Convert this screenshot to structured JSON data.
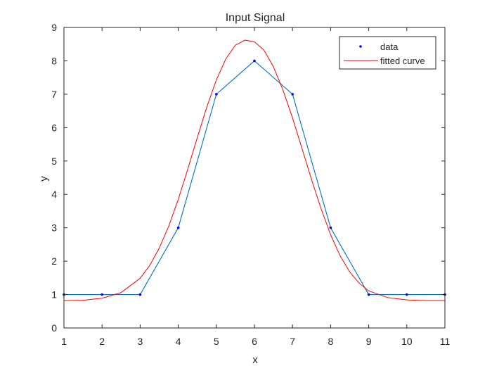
{
  "chart_data": {
    "type": "line",
    "title": "Input Signal",
    "xlabel": "x",
    "ylabel": "y",
    "xlim": [
      1,
      11
    ],
    "ylim": [
      0,
      9
    ],
    "xticks": [
      1,
      2,
      3,
      4,
      5,
      6,
      7,
      8,
      9,
      10,
      11
    ],
    "yticks": [
      0,
      1,
      2,
      3,
      4,
      5,
      6,
      7,
      8,
      9
    ],
    "grid": false,
    "legend_position": "top-right",
    "series": [
      {
        "name": "data",
        "style": "markers",
        "color": "#0000ff",
        "x": [
          1,
          2,
          3,
          4,
          5,
          6,
          7,
          8,
          9,
          10,
          11
        ],
        "y": [
          1,
          1,
          1,
          3,
          7,
          8,
          7,
          3,
          1,
          1,
          1
        ]
      },
      {
        "style": "line",
        "color": "#0072bd",
        "x": [
          1,
          2,
          3,
          4,
          5,
          6,
          7,
          8,
          9,
          10,
          11
        ],
        "y": [
          1,
          1,
          1,
          3,
          7,
          8,
          7,
          3,
          1,
          1,
          1
        ]
      },
      {
        "name": "fitted curve",
        "style": "line",
        "color": "#ff0000",
        "x": [
          1,
          1.5,
          2,
          2.5,
          3,
          3.25,
          3.5,
          3.75,
          4,
          4.25,
          4.5,
          4.75,
          5,
          5.25,
          5.5,
          5.75,
          6,
          6.25,
          6.5,
          6.75,
          7,
          7.25,
          7.5,
          7.75,
          8,
          8.25,
          8.5,
          8.75,
          9,
          9.5,
          10,
          10.5,
          11
        ],
        "y": [
          0.82,
          0.83,
          0.89,
          1.06,
          1.49,
          1.87,
          2.39,
          3.05,
          3.85,
          4.76,
          5.7,
          6.62,
          7.43,
          8.06,
          8.47,
          8.62,
          8.57,
          8.32,
          7.82,
          7.12,
          6.29,
          5.37,
          4.44,
          3.57,
          2.79,
          2.16,
          1.68,
          1.34,
          1.11,
          0.91,
          0.84,
          0.82,
          0.82
        ]
      }
    ]
  }
}
